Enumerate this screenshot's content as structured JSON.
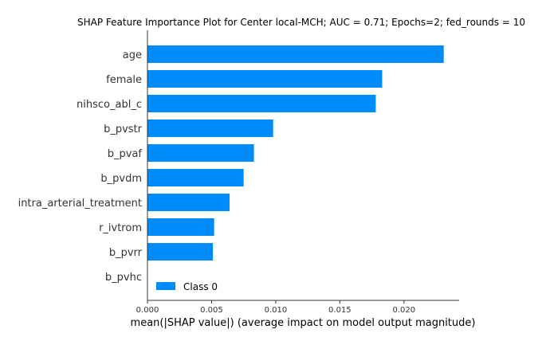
{
  "chart_data": {
    "type": "bar",
    "orientation": "horizontal",
    "title": "SHAP Feature Importance Plot for Center local-MCH; AUC = 0.71; Epochs=2; fed_rounds = 10",
    "xlabel": "mean(|SHAP value|) (average impact on model output magnitude)",
    "ylabel": "",
    "categories": [
      "age",
      "female",
      "nihsco_abl_c",
      "b_pvstr",
      "b_pvaf",
      "b_pvdm",
      "intra_arterial_treatment",
      "r_ivtrom",
      "b_pvrr",
      "b_pvhc"
    ],
    "series": [
      {
        "name": "Class 0",
        "color": "#008bfb",
        "values": [
          0.0231,
          0.0183,
          0.0178,
          0.0098,
          0.0083,
          0.0075,
          0.0064,
          0.0052,
          0.0051,
          0.0
        ]
      }
    ],
    "xlim": [
      0,
      0.0243
    ],
    "xticks": [
      "0.000",
      "0.005",
      "0.010",
      "0.015",
      "0.020"
    ],
    "xtick_values": [
      0,
      0.005,
      0.01,
      0.015,
      0.02
    ],
    "legend": {
      "label": "Class 0",
      "position": "lower-left"
    },
    "grid": false
  }
}
